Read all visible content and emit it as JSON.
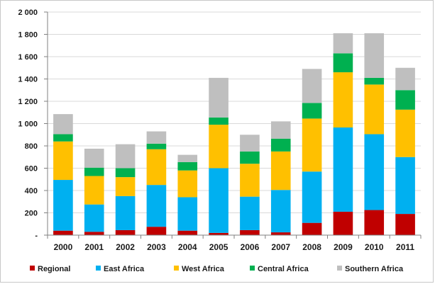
{
  "chart_data": {
    "type": "bar",
    "stacked": true,
    "title": "",
    "xlabel": "",
    "ylabel": "",
    "ylim": [
      0,
      2000
    ],
    "y_ticks": [
      0,
      200,
      400,
      600,
      800,
      1000,
      1200,
      1400,
      1600,
      1800,
      2000
    ],
    "y_tick_labels": [
      "-",
      "200",
      "400",
      "600",
      "800",
      "1 000",
      "1 200",
      "1 400",
      "1 600",
      "1 800",
      "2 000"
    ],
    "grid": true,
    "legend_position": "bottom",
    "categories": [
      "2000",
      "2001",
      "2002",
      "2003",
      "2004",
      "2005",
      "2006",
      "2007",
      "2008",
      "2009",
      "2010",
      "2011"
    ],
    "series": [
      {
        "name": "Regional",
        "color": "#c00000",
        "values": [
          40,
          30,
          45,
          75,
          40,
          20,
          45,
          25,
          110,
          210,
          225,
          190
        ]
      },
      {
        "name": "East Africa",
        "color": "#00b0f0",
        "values": [
          455,
          245,
          305,
          375,
          300,
          580,
          300,
          380,
          460,
          755,
          680,
          510
        ]
      },
      {
        "name": "West Africa",
        "color": "#ffc000",
        "values": [
          345,
          255,
          170,
          320,
          240,
          390,
          295,
          345,
          475,
          495,
          445,
          425
        ]
      },
      {
        "name": "Central Africa",
        "color": "#00b050",
        "values": [
          65,
          75,
          80,
          50,
          75,
          65,
          110,
          115,
          140,
          170,
          60,
          175
        ]
      },
      {
        "name": "Southern Africa",
        "color": "#bfbfbf",
        "values": [
          180,
          170,
          215,
          110,
          65,
          355,
          150,
          155,
          305,
          180,
          400,
          200
        ]
      }
    ]
  }
}
